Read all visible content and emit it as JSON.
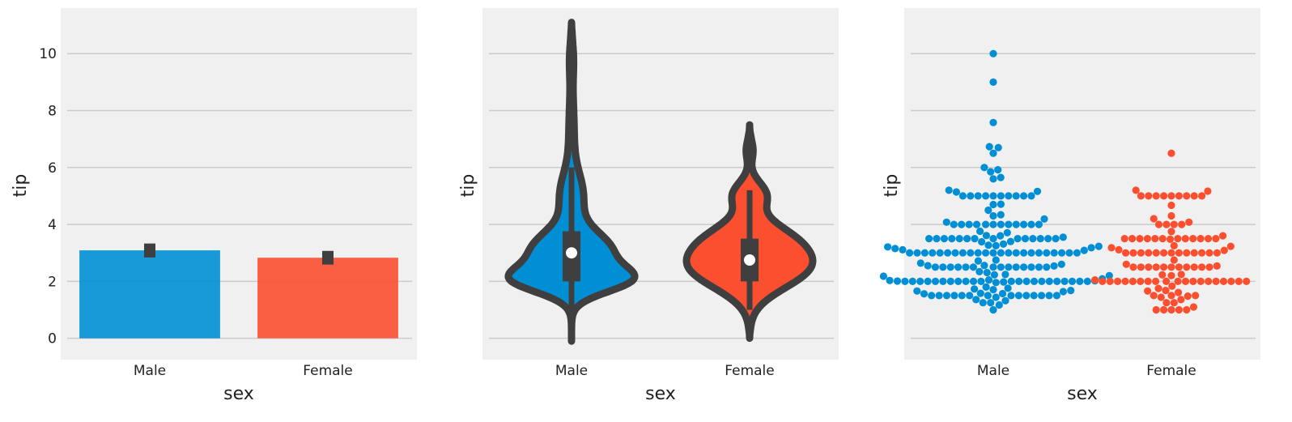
{
  "chart_data": [
    {
      "type": "bar",
      "categories": [
        "Male",
        "Female"
      ],
      "values": [
        3.09,
        2.83
      ],
      "ci": [
        [
          2.84,
          3.33
        ],
        [
          2.59,
          3.07
        ]
      ],
      "colors": [
        "#008fd5",
        "#fc4f30"
      ],
      "xlabel": "sex",
      "ylabel": "tip",
      "ylim": [
        -0.75,
        11.6
      ],
      "yticks": [
        "0",
        "2",
        "4",
        "6",
        "8",
        "10"
      ],
      "grid": true
    },
    {
      "type": "violin",
      "categories": [
        "Male",
        "Female"
      ],
      "colors": [
        "#008fd5",
        "#fc4f30"
      ],
      "xlabel": "sex",
      "ylabel": "tip",
      "ylim": [
        -0.75,
        11.6
      ],
      "grid": true,
      "stats": [
        {
          "category": "Male",
          "median": 3.0,
          "q1": 2.0,
          "q3": 3.76,
          "whisker_low": 1.0,
          "whisker_high": 6.0,
          "kde_low": -0.1,
          "kde_high": 11.1
        },
        {
          "category": "Female",
          "median": 2.75,
          "q1": 2.0,
          "q3": 3.5,
          "whisker_low": 1.0,
          "whisker_high": 5.2,
          "kde_low": 0.0,
          "kde_high": 7.5
        }
      ]
    },
    {
      "type": "scatter",
      "subtype": "swarm",
      "categories": [
        "Male",
        "Female"
      ],
      "colors": [
        "#008fd5",
        "#fc4f30"
      ],
      "xlabel": "sex",
      "ylabel": "tip",
      "ylim": [
        -0.75,
        11.6
      ],
      "grid": true,
      "groups": [
        {
          "category": "Male",
          "y": [
            10.0,
            9.0,
            7.58,
            6.73,
            6.7,
            6.5,
            6.0,
            5.92,
            5.85,
            5.65,
            5.6,
            5.2,
            5.16,
            5.14,
            5.0,
            5.0,
            5.0,
            5.0,
            5.0,
            5.0,
            5.0,
            5.0,
            5.0,
            5.0,
            4.71,
            4.7,
            4.5,
            4.34,
            4.3,
            4.19,
            4.08,
            4.0,
            4.0,
            4.0,
            4.0,
            4.0,
            4.0,
            4.0,
            4.0,
            4.0,
            4.0,
            4.0,
            4.0,
            3.76,
            3.71,
            3.61,
            3.6,
            3.55,
            3.5,
            3.5,
            3.5,
            3.5,
            3.5,
            3.5,
            3.5,
            3.5,
            3.5,
            3.5,
            3.5,
            3.5,
            3.5,
            3.5,
            3.4,
            3.39,
            3.31,
            3.27,
            3.25,
            3.23,
            3.21,
            3.18,
            3.15,
            3.11,
            3.09,
            3.0,
            3.0,
            3.0,
            3.0,
            3.0,
            3.0,
            3.0,
            3.0,
            3.0,
            3.0,
            3.0,
            3.0,
            3.0,
            3.0,
            3.0,
            3.0,
            3.0,
            3.0,
            3.0,
            3.0,
            3.0,
            3.0,
            3.0,
            2.75,
            2.72,
            2.64,
            2.6,
            2.56,
            2.55,
            2.54,
            2.5,
            2.5,
            2.5,
            2.5,
            2.5,
            2.5,
            2.5,
            2.5,
            2.5,
            2.5,
            2.5,
            2.5,
            2.5,
            2.5,
            2.34,
            2.31,
            2.24,
            2.23,
            2.2,
            2.18,
            2.09,
            2.05,
            2.03,
            2.02,
            2.01,
            2.0,
            2.0,
            2.0,
            2.0,
            2.0,
            2.0,
            2.0,
            2.0,
            2.0,
            2.0,
            2.0,
            2.0,
            2.0,
            2.0,
            2.0,
            2.0,
            2.0,
            2.0,
            2.0,
            2.0,
            2.0,
            2.0,
            1.98,
            1.96,
            1.8,
            1.76,
            1.73,
            1.71,
            1.68,
            1.66,
            1.64,
            1.58,
            1.57,
            1.56,
            1.5,
            1.5,
            1.5,
            1.5,
            1.5,
            1.5,
            1.5,
            1.5,
            1.5,
            1.5,
            1.5,
            1.5,
            1.5,
            1.5,
            1.44,
            1.36,
            1.32,
            1.25,
            1.25,
            1.17,
            1.0
          ]
        },
        {
          "category": "Female",
          "y": [
            6.5,
            5.2,
            5.17,
            5.0,
            5.0,
            5.0,
            5.0,
            5.0,
            5.0,
            5.0,
            5.0,
            5.0,
            4.67,
            4.3,
            4.2,
            4.08,
            4.0,
            4.0,
            4.0,
            4.0,
            3.75,
            3.6,
            3.5,
            3.5,
            3.5,
            3.5,
            3.5,
            3.5,
            3.5,
            3.5,
            3.5,
            3.5,
            3.5,
            3.5,
            3.48,
            3.25,
            3.23,
            3.18,
            3.11,
            3.09,
            3.0,
            3.0,
            3.0,
            3.0,
            3.0,
            3.0,
            3.0,
            3.0,
            3.0,
            3.0,
            3.0,
            3.0,
            3.0,
            2.75,
            2.6,
            2.54,
            2.5,
            2.5,
            2.5,
            2.5,
            2.5,
            2.5,
            2.5,
            2.5,
            2.5,
            2.5,
            2.5,
            2.24,
            2.23,
            2.2,
            2.05,
            2.0,
            2.0,
            2.0,
            2.0,
            2.0,
            2.0,
            2.0,
            2.0,
            2.0,
            2.0,
            2.0,
            2.0,
            2.0,
            2.0,
            2.0,
            2.0,
            2.0,
            2.0,
            2.0,
            1.83,
            1.75,
            1.68,
            1.66,
            1.61,
            1.5,
            1.5,
            1.5,
            1.48,
            1.44,
            1.36,
            1.25,
            1.25,
            1.1,
            1.0,
            1.0,
            1.0,
            1.0,
            1.0
          ]
        }
      ]
    }
  ]
}
